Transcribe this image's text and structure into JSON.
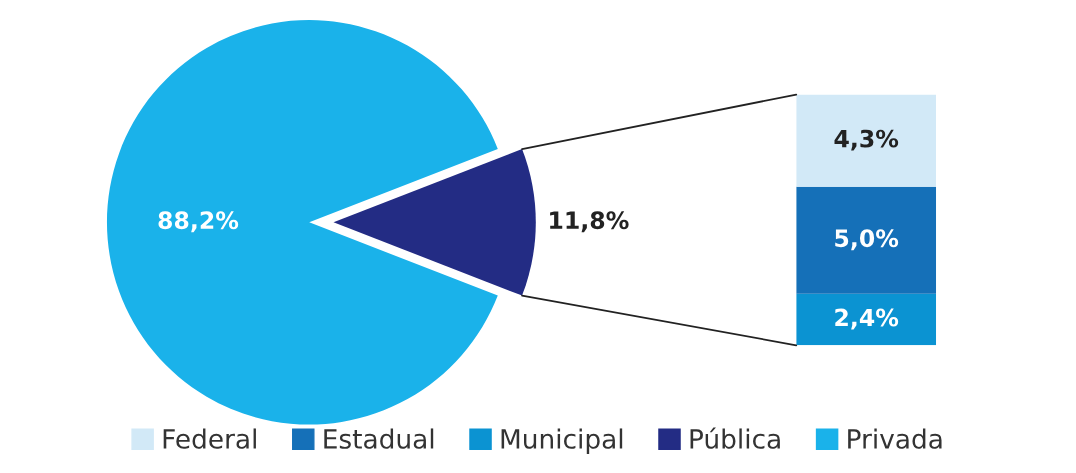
{
  "chart_data": [
    {
      "type": "pie",
      "categories": [
        "Pública",
        "Privada"
      ],
      "values": [
        11.8,
        88.2
      ],
      "colors": [
        "#232c84",
        "#1ab2ea"
      ],
      "value_labels": [
        "11,8%",
        "88,2%"
      ],
      "legend": "bottom"
    },
    {
      "type": "bar",
      "stacked": true,
      "categories": [
        null
      ],
      "legend": "bottom",
      "series": [
        {
          "name": "Municipal",
          "color": "#0b93d2",
          "values": [
            2.4
          ],
          "value_labels": [
            "2,4%"
          ]
        },
        {
          "name": "Estadual",
          "color": "#1570b8",
          "values": [
            5.0
          ],
          "value_labels": [
            "5,0%"
          ]
        },
        {
          "name": "Federal",
          "color": "#d2e9f7",
          "values": [
            4.3
          ],
          "value_labels": [
            "4,3%"
          ]
        }
      ]
    }
  ]
}
